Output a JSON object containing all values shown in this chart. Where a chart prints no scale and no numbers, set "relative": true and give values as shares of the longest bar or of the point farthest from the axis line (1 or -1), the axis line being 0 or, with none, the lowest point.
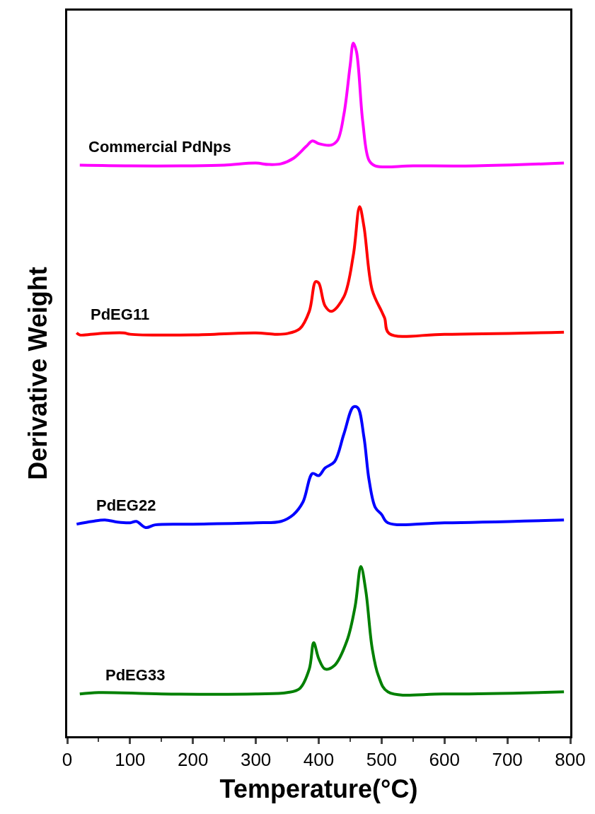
{
  "chart_data": {
    "type": "line",
    "relative": true,
    "xlabel": "Temperature(°C)",
    "ylabel": "Derivative Weight",
    "xlim": [
      0,
      800
    ],
    "xticks": [
      0,
      100,
      200,
      300,
      400,
      500,
      600,
      700,
      800
    ],
    "legend": false,
    "marker": "none",
    "line_style": "solid",
    "series": [
      {
        "name": "Commercial PdNps",
        "color": "#ff00ff",
        "x": [
          20,
          100,
          200,
          250,
          300,
          320,
          340,
          360,
          380,
          390,
          400,
          420,
          430,
          440,
          450,
          455,
          460,
          470,
          480,
          490,
          550,
          650,
          790
        ],
        "values": [
          0.824,
          0.823,
          0.823,
          0.824,
          0.827,
          0.825,
          0.826,
          0.834,
          0.851,
          0.859,
          0.855,
          0.853,
          0.86,
          0.897,
          0.968,
          1.0,
          0.988,
          0.887,
          0.831,
          0.823,
          0.823,
          0.823,
          0.827
        ]
      },
      {
        "name": "PdEG11",
        "color": "#ff0000",
        "x": [
          15,
          20,
          50,
          90,
          100,
          200,
          300,
          330,
          350,
          370,
          385,
          395,
          400,
          410,
          420,
          440,
          455,
          465,
          472,
          485,
          500,
          505,
          512,
          600,
          790
        ],
        "values": [
          0.582,
          0.579,
          0.581,
          0.582,
          0.58,
          0.579,
          0.582,
          0.58,
          0.581,
          0.588,
          0.613,
          0.656,
          0.654,
          0.621,
          0.613,
          0.634,
          0.694,
          0.764,
          0.735,
          0.644,
          0.613,
          0.603,
          0.581,
          0.58,
          0.583
        ]
      },
      {
        "name": "PdEG22",
        "color": "#0000ff",
        "x": [
          15,
          40,
          60,
          80,
          100,
          110,
          125,
          140,
          200,
          300,
          340,
          360,
          375,
          390,
          400,
          410,
          425,
          440,
          455,
          462,
          472,
          480,
          490,
          500,
          510,
          600,
          790
        ],
        "values": [
          0.306,
          0.31,
          0.312,
          0.309,
          0.308,
          0.31,
          0.301,
          0.305,
          0.306,
          0.308,
          0.31,
          0.32,
          0.338,
          0.379,
          0.376,
          0.387,
          0.396,
          0.436,
          0.475,
          0.474,
          0.431,
          0.37,
          0.33,
          0.32,
          0.308,
          0.308,
          0.312
        ]
      },
      {
        "name": "PdEG33",
        "color": "#008000",
        "x": [
          20,
          50,
          150,
          300,
          350,
          370,
          385,
          392,
          400,
          410,
          425,
          445,
          458,
          467,
          475,
          485,
          495,
          510,
          600,
          790
        ],
        "values": [
          0.061,
          0.063,
          0.061,
          0.061,
          0.063,
          0.069,
          0.097,
          0.135,
          0.112,
          0.097,
          0.102,
          0.138,
          0.188,
          0.245,
          0.209,
          0.127,
          0.087,
          0.064,
          0.061,
          0.064
        ]
      }
    ]
  }
}
